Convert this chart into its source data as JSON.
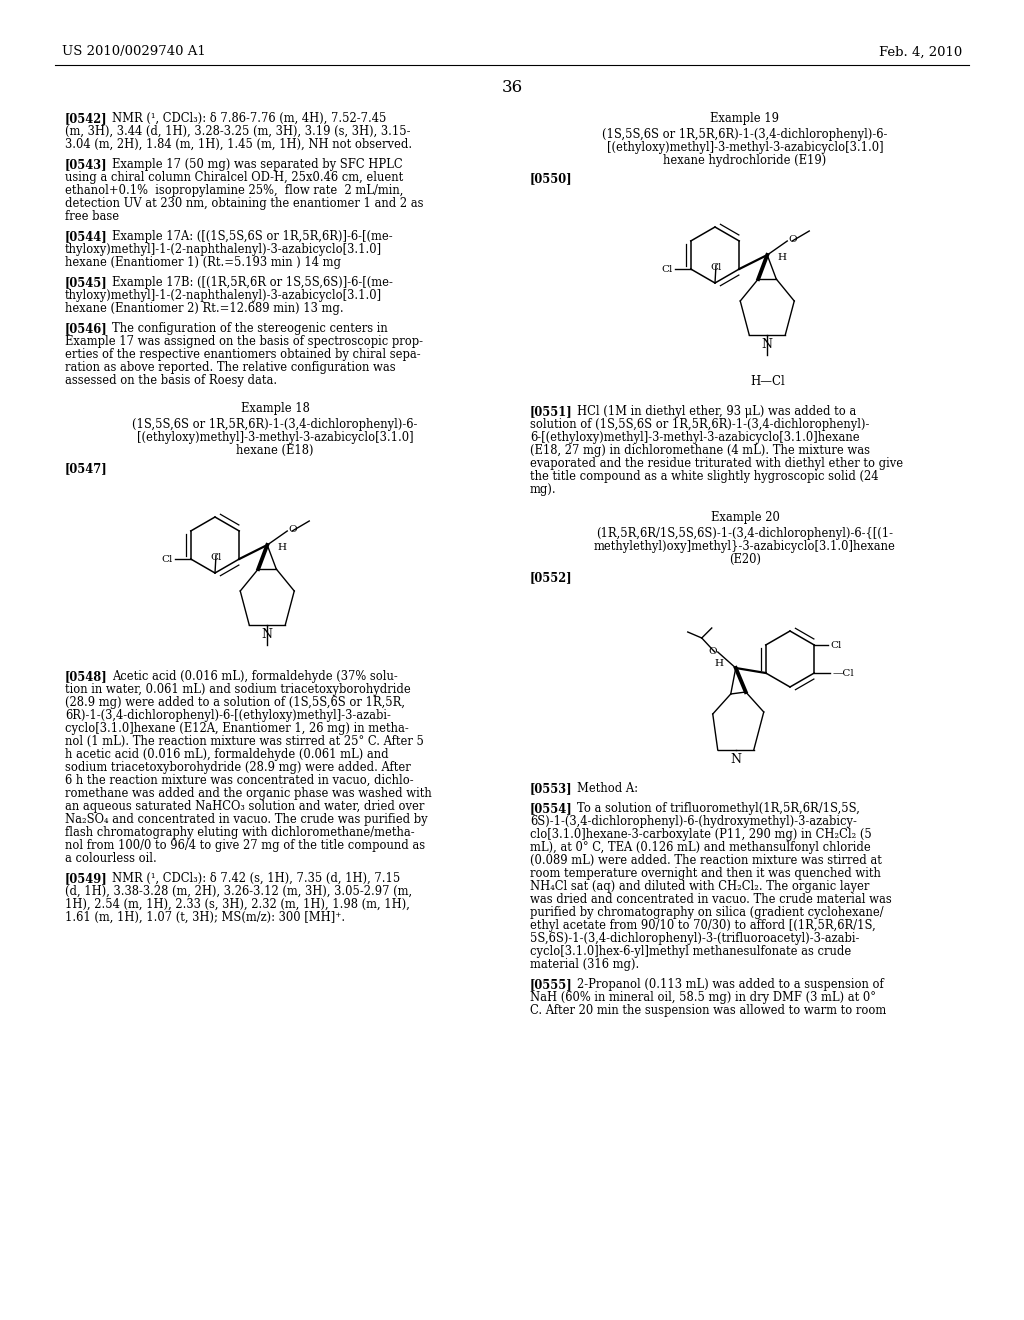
{
  "page_number": "36",
  "header_left": "US 2010/0029740 A1",
  "header_right": "Feb. 4, 2010",
  "background_color": "#ffffff"
}
